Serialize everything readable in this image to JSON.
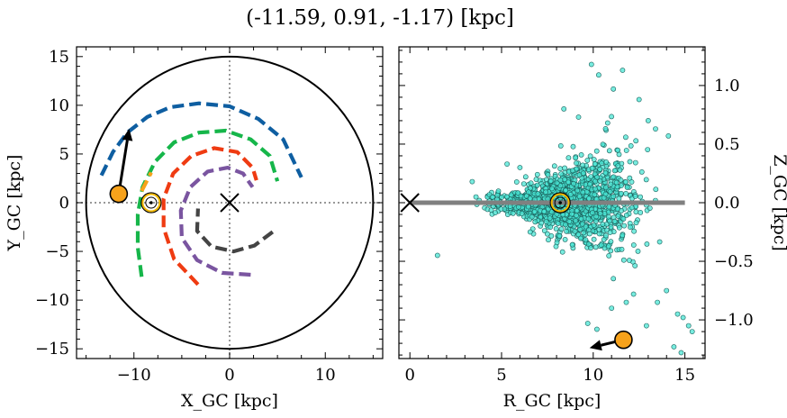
{
  "figure": {
    "title": "(-11.59, 0.91, -1.17) [kpc]"
  },
  "chart_data": [
    {
      "type": "scatter",
      "title": "",
      "xlabel": "X_GC [kpc]",
      "ylabel": "Y_GC [kpc]",
      "xlim": [
        -16,
        16
      ],
      "ylim": [
        -16,
        16
      ],
      "xticks": [
        -10,
        0,
        10
      ],
      "xtick_labels": [
        "−10",
        "0",
        "10"
      ],
      "yticks": [
        -15,
        -10,
        -5,
        0,
        5,
        10,
        15
      ],
      "ytick_labels": [
        "−15",
        "−10",
        "−5",
        "0",
        "5",
        "10",
        "15"
      ],
      "grid": false,
      "galactic_center": {
        "x": 0,
        "y": 0,
        "marker": "x"
      },
      "boundary_circle": {
        "cx": 0,
        "cy": 0,
        "r": 15,
        "color": "#000000"
      },
      "sun": {
        "x": -8.2,
        "y": 0.0,
        "marker": "sun-symbol",
        "color": "#f2b800"
      },
      "object": {
        "x": -11.59,
        "y": 0.91,
        "color": "#f7a21b"
      },
      "velocity_arrow": {
        "from": [
          -11.59,
          0.91
        ],
        "to": [
          -10.5,
          7.6
        ]
      },
      "spiral_arms": [
        {
          "name": "",
          "color": "#0e5ea1",
          "points": [
            [
              -13.4,
              2.8
            ],
            [
              -12.2,
              5.2
            ],
            [
              -10.7,
              7.2
            ],
            [
              -8.6,
              8.8
            ],
            [
              -6.2,
              9.8
            ],
            [
              -3.2,
              10.2
            ],
            [
              0.0,
              9.9
            ],
            [
              3.0,
              8.6
            ],
            [
              5.6,
              6.5
            ],
            [
              7.5,
              2.6
            ]
          ]
        },
        {
          "name": "",
          "color": "#16b64a",
          "points": [
            [
              -9.2,
              -7.6
            ],
            [
              -9.6,
              -4.6
            ],
            [
              -9.6,
              -1.2
            ],
            [
              -9.1,
              1.6
            ],
            [
              -7.8,
              4.2
            ],
            [
              -5.8,
              6.2
            ],
            [
              -3.2,
              7.2
            ],
            [
              -0.4,
              7.4
            ],
            [
              2.2,
              6.5
            ],
            [
              4.2,
              4.8
            ],
            [
              5.0,
              2.2
            ]
          ]
        },
        {
          "name": "",
          "color": "#f7a21b",
          "points": [
            [
              -9.2,
              1.2
            ],
            [
              -8.2,
              3.1
            ]
          ]
        },
        {
          "name": "",
          "color": "#ef3b12",
          "points": [
            [
              -3.3,
              -8.4
            ],
            [
              -5.8,
              -5.8
            ],
            [
              -6.9,
              -2.6
            ],
            [
              -6.9,
              0.4
            ],
            [
              -5.9,
              3.0
            ],
            [
              -4.0,
              4.8
            ],
            [
              -1.6,
              5.6
            ],
            [
              0.8,
              5.2
            ],
            [
              2.4,
              3.6
            ],
            [
              2.8,
              2.3
            ]
          ]
        },
        {
          "name": "",
          "color": "#7a55a0",
          "points": [
            [
              2.2,
              -7.4
            ],
            [
              -0.8,
              -7.2
            ],
            [
              -3.4,
              -5.9
            ],
            [
              -5.0,
              -3.6
            ],
            [
              -5.1,
              -0.8
            ],
            [
              -4.1,
              1.6
            ],
            [
              -2.3,
              3.2
            ],
            [
              -0.2,
              3.6
            ],
            [
              1.4,
              3.0
            ],
            [
              2.4,
              1.6
            ]
          ]
        },
        {
          "name": "",
          "color": "#444444",
          "points": [
            [
              4.5,
              -3.0
            ],
            [
              2.6,
              -4.4
            ],
            [
              0.4,
              -5.0
            ],
            [
              -1.9,
              -4.5
            ],
            [
              -3.4,
              -2.9
            ],
            [
              -3.3,
              -0.6
            ]
          ]
        }
      ]
    },
    {
      "type": "scatter",
      "title": "",
      "xlabel": "R_GC [kpc]",
      "ylabel": "Z_GC [kpc]",
      "ylabel_side": "right",
      "xlim": [
        -0.6,
        16.1
      ],
      "ylim": [
        -1.33,
        1.33
      ],
      "xticks": [
        0,
        5,
        10,
        15
      ],
      "xtick_labels": [
        "0",
        "5",
        "10",
        "15"
      ],
      "yticks": [
        -1.0,
        -0.5,
        0.0,
        0.5,
        1.0
      ],
      "ytick_labels": [
        "−1.0",
        "−0.5",
        "0.0",
        "0.5",
        "1.0"
      ],
      "grid": false,
      "galactic_center": {
        "x": 0,
        "y": 0,
        "marker": "x"
      },
      "disk_line": {
        "x": [
          0,
          15
        ],
        "y": 0,
        "color": "#808080"
      },
      "sun": {
        "x": 8.2,
        "y": 0.0,
        "marker": "sun-symbol",
        "color": "#f2b800"
      },
      "object": {
        "x": 11.65,
        "y": -1.17,
        "color": "#f7a21b"
      },
      "velocity_arrow": {
        "from": [
          11.65,
          -1.17
        ],
        "to": [
          9.8,
          -1.24
        ]
      },
      "stars": {
        "color": "#49e6d4",
        "edge_color": "#1a5f5a",
        "count": 1500,
        "spread_note": "",
        "outliers": [
          [
            9.9,
            1.18
          ],
          [
            11.6,
            1.13
          ],
          [
            11.1,
            0.97
          ],
          [
            10.3,
            1.09
          ],
          [
            8.4,
            0.8
          ],
          [
            9.2,
            0.73
          ],
          [
            12.5,
            0.88
          ],
          [
            13.4,
            0.63
          ],
          [
            14.1,
            0.57
          ],
          [
            13.0,
            0.7
          ],
          [
            14.6,
            -0.95
          ],
          [
            14.9,
            -0.98
          ],
          [
            15.2,
            -1.05
          ],
          [
            14.4,
            -1.23
          ],
          [
            14.8,
            -1.28
          ],
          [
            15.4,
            -1.1
          ],
          [
            13.5,
            -0.85
          ],
          [
            12.2,
            -0.78
          ],
          [
            11.8,
            -0.85
          ],
          [
            11.0,
            -0.9
          ],
          [
            9.7,
            -1.03
          ],
          [
            10.2,
            -1.08
          ],
          [
            11.3,
            -1.35
          ],
          [
            12.9,
            -1.05
          ],
          [
            14.0,
            -0.75
          ],
          [
            1.5,
            -0.45
          ],
          [
            3.4,
            0.18
          ],
          [
            5.3,
            0.33
          ],
          [
            6.0,
            0.3
          ],
          [
            12.0,
            0.35
          ]
        ]
      }
    }
  ]
}
